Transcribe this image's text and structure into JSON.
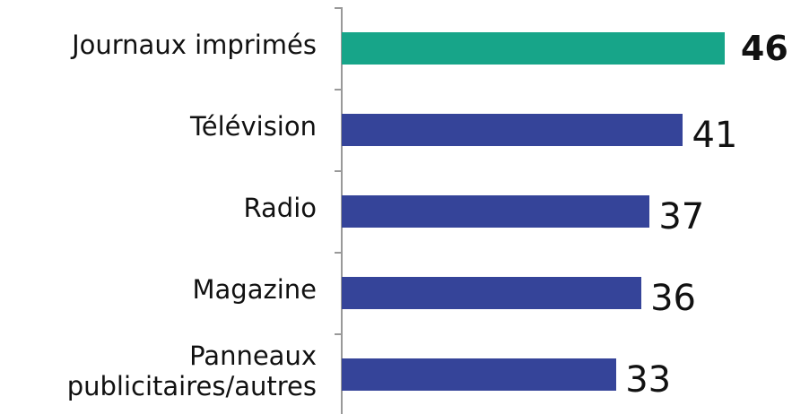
{
  "chart_data": {
    "type": "bar",
    "orientation": "horizontal",
    "categories": [
      "Journaux imprimés",
      "Télévision",
      "Radio",
      "Magazine",
      "Panneaux publicitaires/autres"
    ],
    "values": [
      46,
      41,
      37,
      36,
      33
    ],
    "colors": [
      "#17a589",
      "#354499",
      "#354499",
      "#354499",
      "#354499"
    ]
  }
}
